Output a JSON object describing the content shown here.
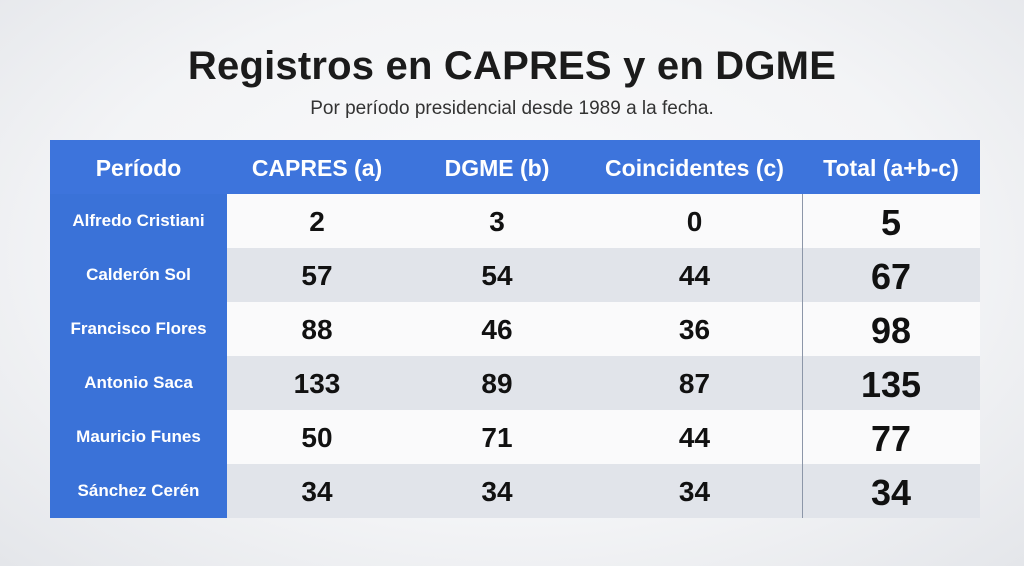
{
  "slide": {
    "title": "Registros en CAPRES y en DGME",
    "subtitle": "Por período presidencial desde 1989 a la fecha."
  },
  "table": {
    "headers": [
      "Período",
      "CAPRES (a)",
      "DGME (b)",
      "Coincidentes (c)",
      "Total (a+b-c)"
    ],
    "rows": [
      {
        "periodo": "Alfredo Cristiani",
        "capres": "2",
        "dgme": "3",
        "coincidentes": "0",
        "total": "5"
      },
      {
        "periodo": "Calderón Sol",
        "capres": "57",
        "dgme": "54",
        "coincidentes": "44",
        "total": "67"
      },
      {
        "periodo": "Francisco Flores",
        "capres": "88",
        "dgme": "46",
        "coincidentes": "36",
        "total": "98"
      },
      {
        "periodo": "Antonio Saca",
        "capres": "133",
        "dgme": "89",
        "coincidentes": "87",
        "total": "135"
      },
      {
        "periodo": "Mauricio Funes",
        "capres": "50",
        "dgme": "71",
        "coincidentes": "44",
        "total": "77"
      },
      {
        "periodo": "Sánchez Cerén",
        "capres": "34",
        "dgme": "34",
        "coincidentes": "34",
        "total": "34"
      }
    ]
  },
  "colors": {
    "header_blue": "#3d74dc",
    "row_alt": "#e1e4ea",
    "row_plain": "#fafafb"
  }
}
